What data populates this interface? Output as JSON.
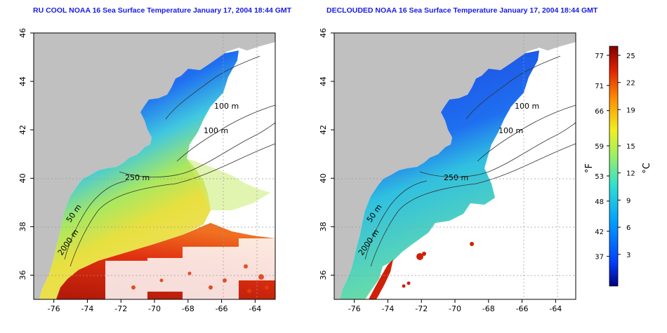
{
  "panels": [
    {
      "title": "RU COOL NOAA 16 Sea Surface Temperature January 17, 2004 18:44 GMT",
      "contour_labels": [
        "100 m",
        "100 m",
        "250 m",
        "50 m",
        "2000 m"
      ]
    },
    {
      "title": "DECLOUDED NOAA 16 Sea Surface Temperature January 17, 2004 18:44 GMT",
      "contour_labels": [
        "100 m",
        "100 m",
        "250 m",
        "50 m",
        "2000 m"
      ]
    }
  ],
  "axes": {
    "x_ticks": [
      "-76",
      "-74",
      "-72",
      "-70",
      "-68",
      "-66",
      "-64"
    ],
    "y_ticks": [
      "36",
      "38",
      "40",
      "42",
      "44",
      "46"
    ],
    "x_range": [
      -77.2,
      -62.8
    ],
    "y_range": [
      35,
      46
    ]
  },
  "colorbar": {
    "f_ticks": [
      "77",
      "71",
      "66",
      "59",
      "53",
      "48",
      "42",
      "37"
    ],
    "c_ticks": [
      "25",
      "22",
      "19",
      "15",
      "12",
      "9",
      "6",
      "3"
    ],
    "f_label": "°F",
    "c_label": "°C",
    "colors": [
      "#000080",
      "#0040ff",
      "#00a0ff",
      "#30e0d0",
      "#a0f060",
      "#f0f020",
      "#ff9000",
      "#e02000",
      "#800000"
    ]
  },
  "colors": {
    "land": "#c0c0c0",
    "cold": "#1f4fe0",
    "warm": "#d03010",
    "title": "#1a1ae6"
  }
}
